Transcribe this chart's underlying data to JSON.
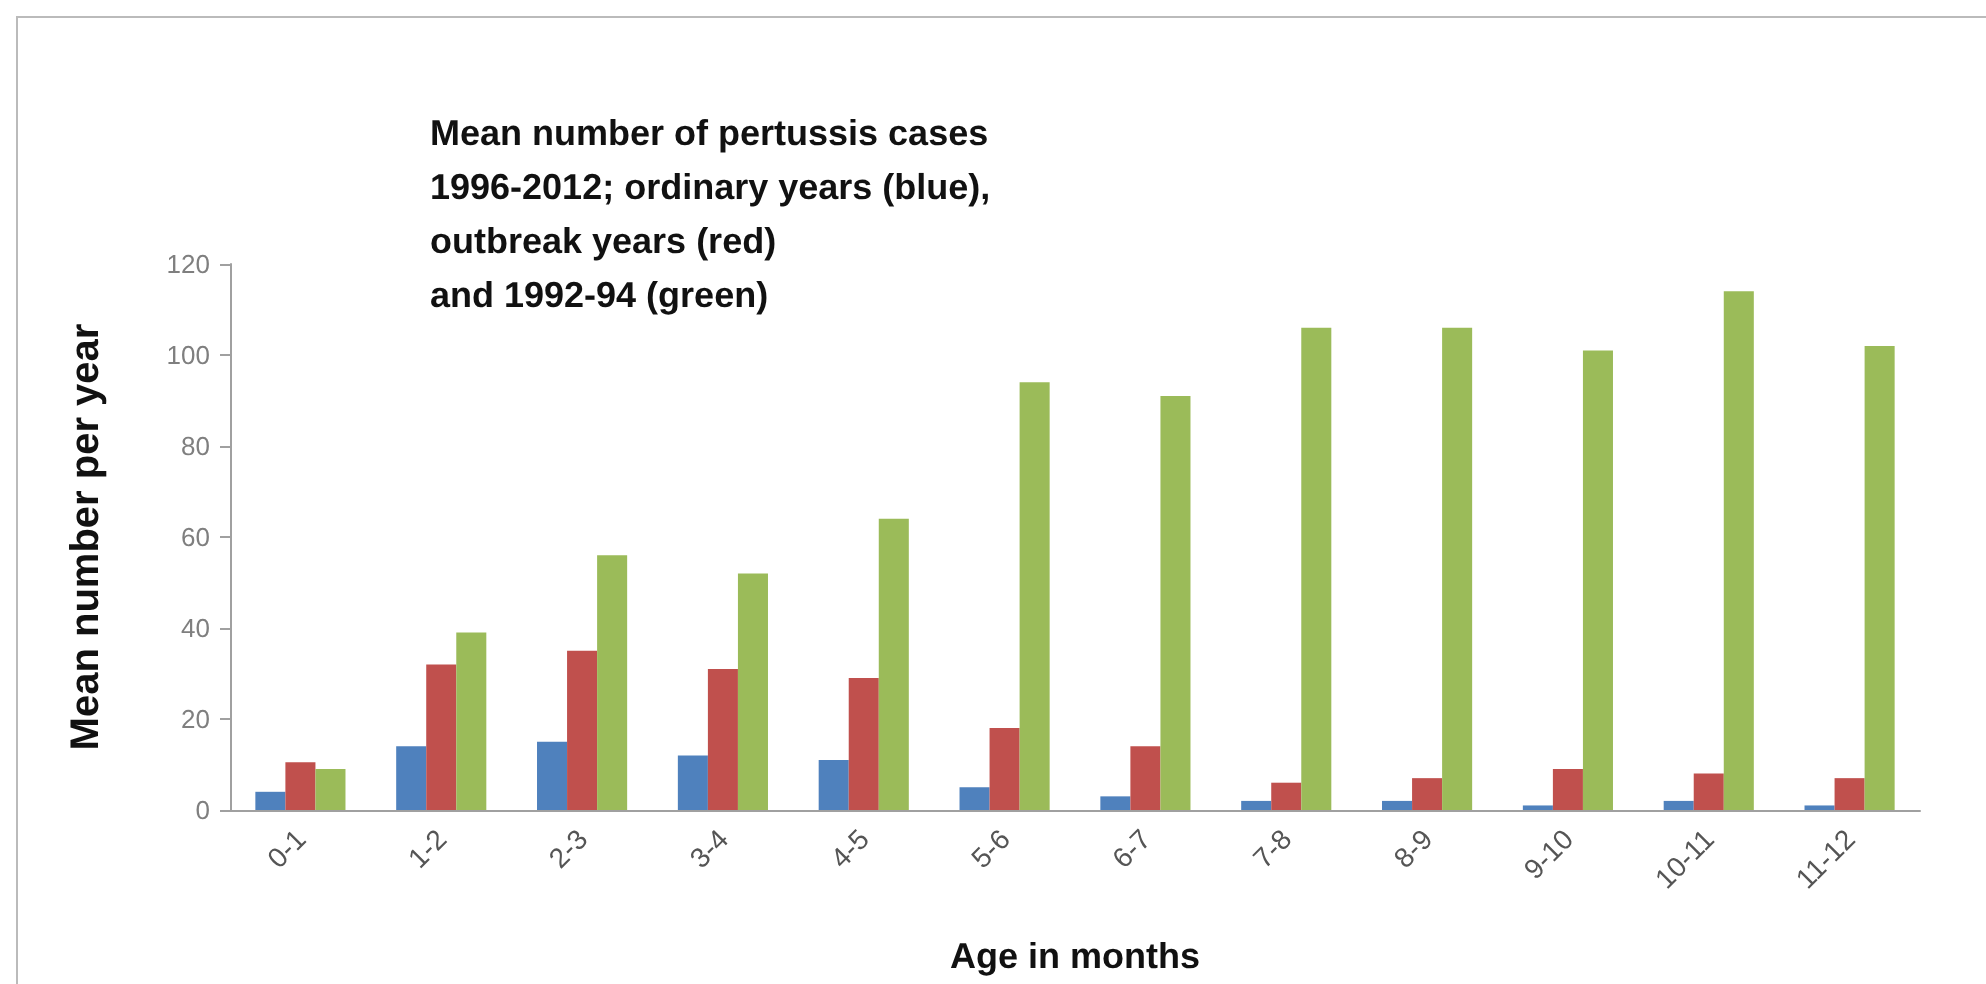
{
  "chart_data": {
    "type": "bar",
    "title": "Mean number of pertussis cases\n1996-2012; ordinary years (blue),\noutbreak years (red)\nand 1992-94 (green)",
    "xlabel": "Age in months",
    "ylabel": "Mean number per year",
    "categories": [
      "0-1",
      "1-2",
      "2-3",
      "3-4",
      "4-5",
      "5-6",
      "6-7",
      "7-8",
      "8-9",
      "9-10",
      "10-11",
      "11-12"
    ],
    "series": [
      {
        "color": "#4f81bd",
        "values": [
          4,
          14,
          15,
          12,
          11,
          5,
          3,
          2,
          2,
          1,
          2,
          1
        ]
      },
      {
        "color": "#c0504d",
        "values": [
          10.5,
          32,
          35,
          31,
          29,
          18,
          14,
          6,
          7,
          9,
          8,
          7
        ]
      },
      {
        "color": "#9bbb59",
        "values": [
          9,
          39,
          56,
          52,
          64,
          94,
          91,
          106,
          106,
          101,
          114,
          102
        ]
      }
    ],
    "ylim": [
      0,
      120
    ],
    "yticks": [
      0,
      20,
      40,
      60,
      80,
      100,
      120
    ],
    "grid": false
  }
}
